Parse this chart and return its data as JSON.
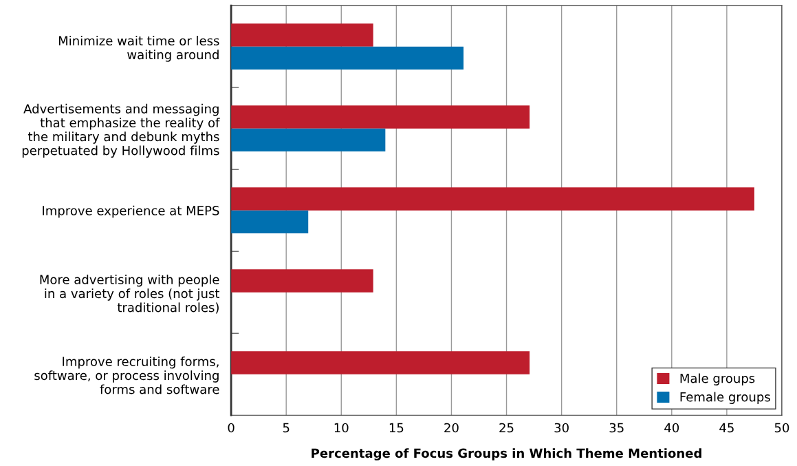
{
  "chart_data": {
    "type": "bar",
    "orientation": "horizontal",
    "xlabel": "Percentage of Focus Groups in Which Theme Mentioned",
    "categories": [
      "Minimize wait time or less\nwaiting around",
      "Advertisements and messaging\nthat emphasize the reality of\nthe military and debunk myths\nperpetuated by Hollywood films",
      "Improve experience at MEPS",
      "More advertising with people\nin a variety of roles (not just\ntraditional roles)",
      "Improve recruiting forms,\nsoftware, or process involving\nforms and software"
    ],
    "series": [
      {
        "name": "Male groups",
        "color": "#be1e2d",
        "values": [
          12.9,
          27.1,
          47.5,
          12.9,
          27.1
        ]
      },
      {
        "name": "Female groups",
        "color": "#0070b0",
        "values": [
          21.1,
          14.0,
          7.0,
          null,
          null
        ]
      }
    ],
    "xlim": [
      0,
      50
    ],
    "xticks": [
      0,
      5,
      10,
      15,
      20,
      25,
      30,
      35,
      40,
      45,
      50
    ],
    "grid": "x",
    "legend": "bottom right"
  }
}
